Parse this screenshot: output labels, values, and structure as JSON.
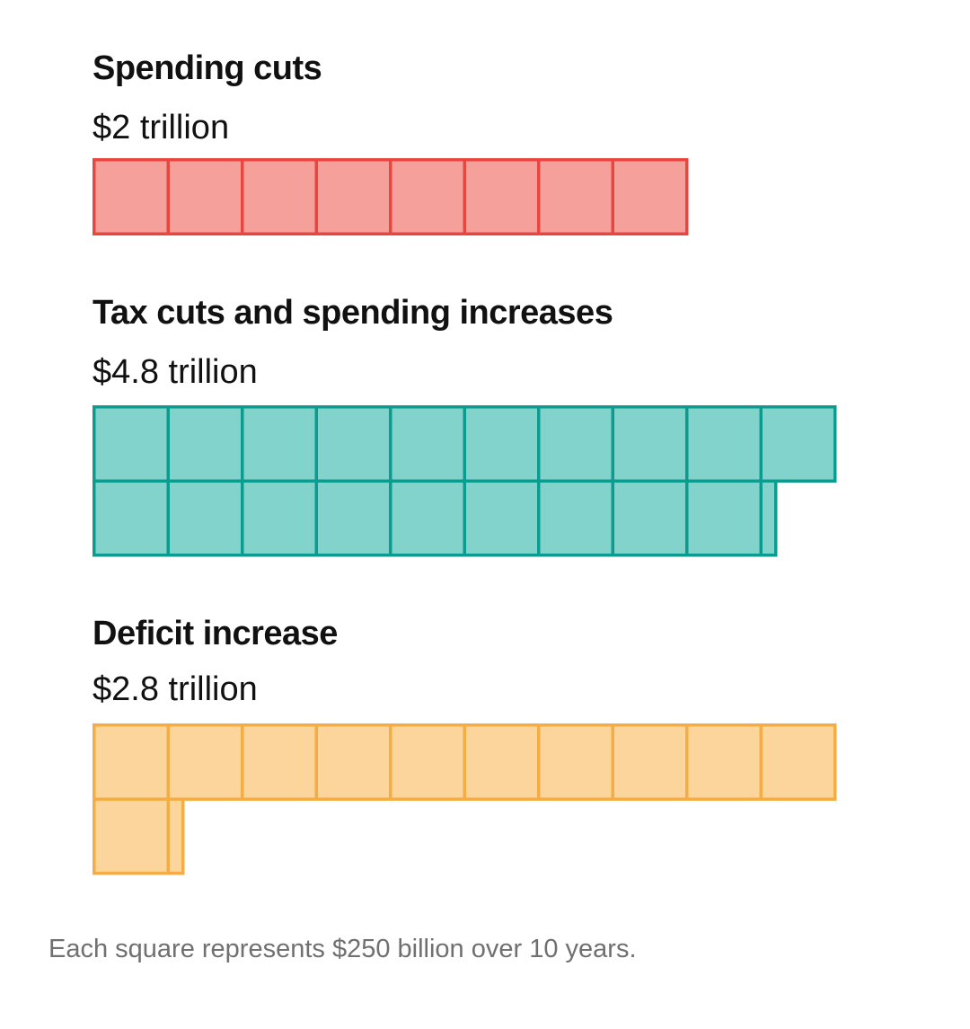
{
  "chart_data": {
    "type": "waffle",
    "unit_value_billion": 250,
    "squares_per_row": 10,
    "note": "Each square represents $250 billion over 10 years.",
    "series": [
      {
        "name": "Spending cuts",
        "label": "$2 trillion",
        "value_trillion": 2.0,
        "squares": 8,
        "stroke": "#e8473f",
        "fill": "#f6a09b"
      },
      {
        "name": "Tax cuts and spending increases",
        "label": "$4.8 trillion",
        "value_trillion": 4.8,
        "squares": 19.2,
        "stroke": "#0c9c8f",
        "fill": "#82d3cc"
      },
      {
        "name": "Deficit increase",
        "label": "$2.8 trillion",
        "value_trillion": 2.8,
        "squares": 11.2,
        "stroke": "#f4ad44",
        "fill": "#fbd59c"
      }
    ]
  }
}
